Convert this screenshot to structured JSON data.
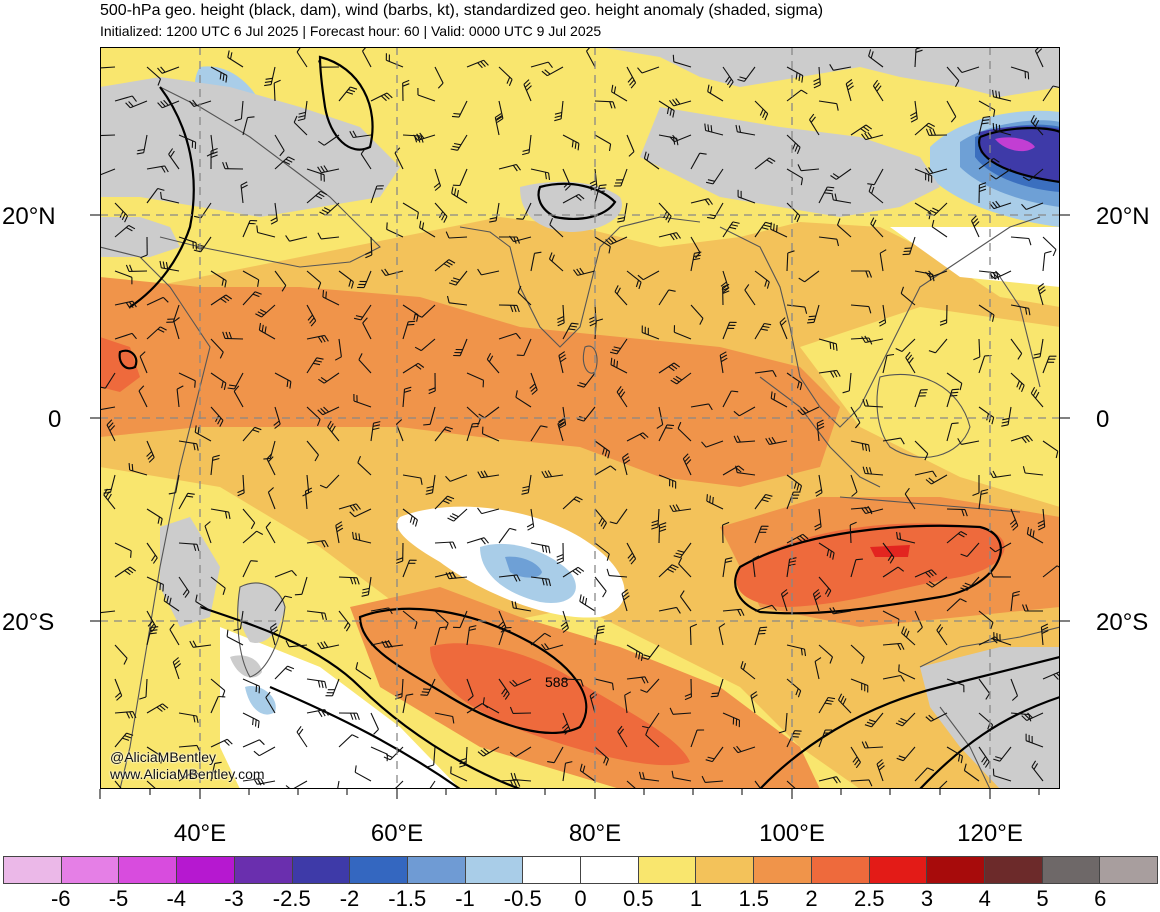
{
  "header": {
    "title": "500-hPa geo. height (black, dam), wind (barbs, kt), standardized geo. height anomaly (shaded, sigma)",
    "subtitle": "Initialized: 1200 UTC 6 Jul 2025 | Forecast hour: 60 | Valid: 0000 UTC 9 Jul 2025"
  },
  "map": {
    "lat_labels_left": [
      "20°N",
      "0",
      "20°S"
    ],
    "lat_labels_right": [
      "20°N",
      "0",
      "20°S"
    ],
    "lon_labels": [
      "40°E",
      "60°E",
      "80°E",
      "100°E",
      "120°E"
    ],
    "contour_label": "588",
    "credit": [
      "@AliciaMBentley",
      "www.AliciaMBentley.com"
    ],
    "colors": {
      "land_masked": "#cccccc",
      "near_zero": "#ffffff",
      "pos_0_5": "#f9e66e",
      "pos_1": "#f3c25a",
      "pos_1_5": "#f0944a",
      "pos_2": "#ee6a3c",
      "pos_2_5": "#e32520",
      "neg_0_5": "#a9cde8",
      "neg_1": "#6ea0d6",
      "neg_1_5": "#3b6fbf",
      "neg_2": "#3e3aa8",
      "neg_2_5": "#7a2fb0",
      "neg_3": "#c23ed3"
    }
  },
  "colorbar": {
    "labels": [
      "-6",
      "-5",
      "-4",
      "-3",
      "-2.5",
      "-2",
      "-1.5",
      "-1",
      "-0.5",
      "0",
      "0.5",
      "1",
      "1.5",
      "2",
      "2.5",
      "3",
      "4",
      "5",
      "6"
    ],
    "colors": [
      "#ebb8e8",
      "#e57fe6",
      "#d84cde",
      "#b618d0",
      "#6a2fae",
      "#3e3aa8",
      "#3467c0",
      "#6f9bd4",
      "#a9cde8",
      "#ffffff",
      "#ffffff",
      "#f9e66e",
      "#f3c25a",
      "#f0944a",
      "#ee6a3c",
      "#e31b17",
      "#a70b0b",
      "#6c2a2a",
      "#6e6868",
      "#a89e9e"
    ]
  }
}
